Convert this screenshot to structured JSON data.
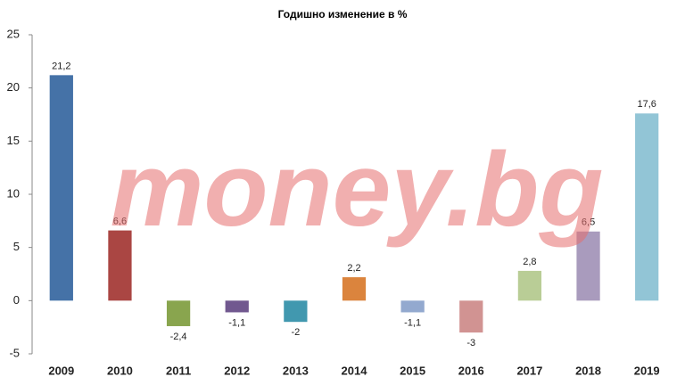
{
  "chart_data": {
    "type": "bar",
    "title": "Годишно изменение в %",
    "watermark": "money.bg",
    "categories": [
      "2009",
      "2010",
      "2011",
      "2012",
      "2013",
      "2014",
      "2015",
      "2016",
      "2017",
      "2018",
      "2019"
    ],
    "values": [
      21.2,
      6.6,
      -2.4,
      -1.1,
      -2,
      2.2,
      -1.1,
      -3,
      2.8,
      6.5,
      17.6
    ],
    "value_labels": [
      "21,2",
      "6,6",
      "-2,4",
      "-1,1",
      "-2",
      "2,2",
      "-1,1",
      "-3",
      "2,8",
      "6,5",
      "17,6"
    ],
    "colors": [
      "#4572a7",
      "#aa4643",
      "#89a54e",
      "#71588f",
      "#4198af",
      "#db843d",
      "#93a9cf",
      "#d19392",
      "#b9cd96",
      "#a99bbd",
      "#92c5d6"
    ],
    "ylim": [
      -5,
      25
    ],
    "yticks": [
      -5,
      0,
      5,
      10,
      15,
      20,
      25
    ],
    "grid": false
  }
}
